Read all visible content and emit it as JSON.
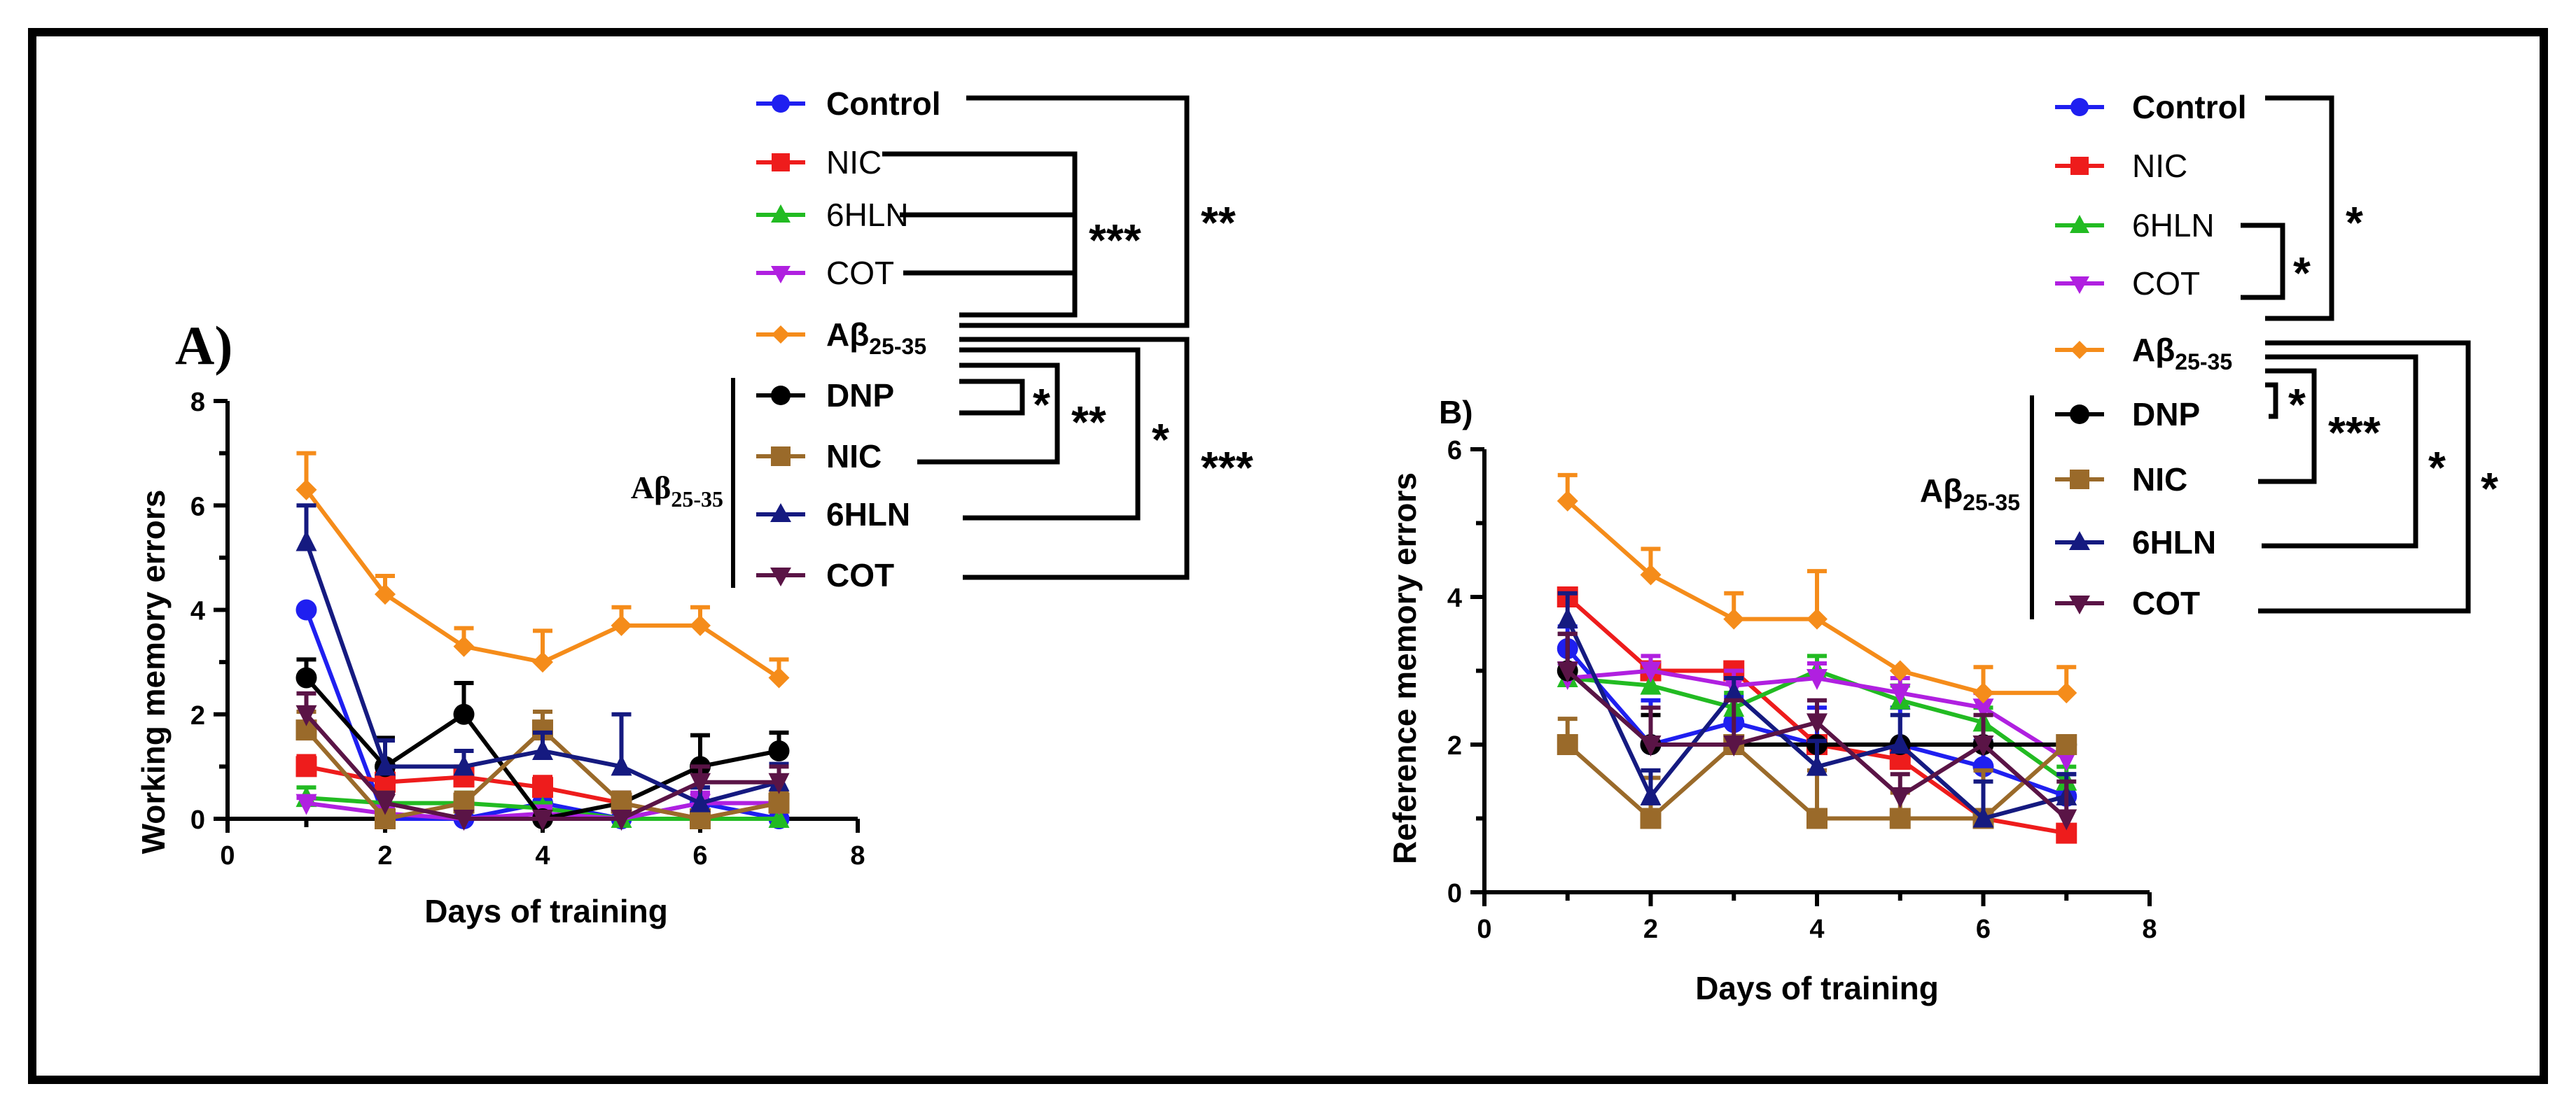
{
  "chart_data": [
    {
      "type": "line",
      "panel_label": "A)",
      "xlabel": "Days of training",
      "ylabel": "Working memory errors",
      "xlim": [
        0,
        8
      ],
      "ylim": [
        0,
        8
      ],
      "x_ticks": [
        "0",
        "2",
        "4",
        "6",
        "8"
      ],
      "y_ticks": [
        "0",
        "2",
        "4",
        "6",
        "8"
      ],
      "x": [
        1,
        2,
        3,
        4,
        5,
        6,
        7
      ],
      "series": [
        {
          "name": "Control",
          "color": "#1f1ff0",
          "marker": "circle",
          "values": [
            4.0,
            0.0,
            0.0,
            0.3,
            0.0,
            0.3,
            0.0
          ],
          "errors": [
            0,
            0,
            0,
            0.3,
            0,
            0.3,
            0
          ]
        },
        {
          "name": "NIC",
          "color": "#ee1c1c",
          "marker": "square",
          "values": [
            1.0,
            0.7,
            0.8,
            0.6,
            0.3,
            0.0,
            0.3
          ],
          "errors": [
            0.2,
            0.2,
            0.2,
            0.2,
            0.2,
            0,
            0.2
          ]
        },
        {
          "name": "6HLN",
          "color": "#22bb22",
          "marker": "triangle",
          "values": [
            0.4,
            0.3,
            0.3,
            0.2,
            0.0,
            0.0,
            0.0
          ],
          "errors": [
            0.2,
            0.2,
            0.2,
            0.1,
            0,
            0,
            0
          ]
        },
        {
          "name": "COT",
          "color": "#b020e0",
          "marker": "triangle-down",
          "values": [
            0.3,
            0.1,
            0.0,
            0.1,
            0.0,
            0.3,
            0.3
          ],
          "errors": [
            0.1,
            0.1,
            0,
            0.1,
            0,
            0.2,
            0.2
          ]
        },
        {
          "name": "Aβ25-35",
          "color": "#f58c1a",
          "marker": "diamond",
          "values": [
            6.3,
            4.3,
            3.3,
            3.0,
            3.7,
            3.7,
            2.7
          ],
          "errors": [
            0.7,
            0.35,
            0.35,
            0.6,
            0.35,
            0.35,
            0.35
          ]
        },
        {
          "name": "DNP",
          "color": "#000000",
          "marker": "circle",
          "values": [
            2.7,
            1.0,
            2.0,
            0.0,
            0.3,
            1.0,
            1.3
          ],
          "errors": [
            0.35,
            0.55,
            0.6,
            0,
            0.2,
            0.6,
            0.35
          ]
        },
        {
          "name": "NIC",
          "color": "#9a6a2a",
          "marker": "square",
          "values": [
            1.7,
            0.0,
            0.3,
            1.7,
            0.3,
            0.0,
            0.3
          ],
          "errors": [
            0.35,
            0,
            0.2,
            0.35,
            0.2,
            0,
            0.2
          ]
        },
        {
          "name": "6HLN",
          "color": "#151a80",
          "marker": "triangle",
          "values": [
            5.3,
            1.0,
            1.0,
            1.3,
            1.0,
            0.3,
            0.7
          ],
          "errors": [
            0.7,
            0.5,
            0.3,
            0.35,
            1.0,
            0.3,
            0.35
          ]
        },
        {
          "name": "COT",
          "color": "#5a1446",
          "marker": "triangle-down",
          "values": [
            2.0,
            0.3,
            0.0,
            0.0,
            0.0,
            0.7,
            0.7
          ],
          "errors": [
            0.4,
            0.2,
            0,
            0,
            0,
            0.3,
            0.3
          ]
        }
      ],
      "legend_group_label": "Aβ25-35",
      "significance": [
        "***",
        "**",
        "*",
        "**",
        "*",
        "***"
      ]
    },
    {
      "type": "line",
      "panel_label": "B)",
      "xlabel": "Days of training",
      "ylabel": "Reference memory errors",
      "xlim": [
        0,
        8
      ],
      "ylim": [
        0,
        6
      ],
      "x_ticks": [
        "0",
        "2",
        "4",
        "6",
        "8"
      ],
      "y_ticks": [
        "0",
        "2",
        "4",
        "6"
      ],
      "x": [
        1,
        2,
        3,
        4,
        5,
        6,
        7
      ],
      "series": [
        {
          "name": "Control",
          "color": "#1f1ff0",
          "marker": "circle",
          "values": [
            3.3,
            2.0,
            2.3,
            2.0,
            2.0,
            1.7,
            1.3
          ],
          "errors": [
            0.3,
            0.6,
            0.35,
            0.5,
            0.5,
            0.35,
            0.3
          ]
        },
        {
          "name": "NIC",
          "color": "#ee1c1c",
          "marker": "square",
          "values": [
            4.0,
            3.0,
            3.0,
            2.0,
            1.8,
            1.0,
            0.8
          ],
          "errors": [
            0,
            0,
            0,
            0,
            0.2,
            0,
            0.1
          ]
        },
        {
          "name": "6HLN",
          "color": "#22bb22",
          "marker": "triangle",
          "values": [
            2.9,
            2.8,
            2.5,
            3.0,
            2.6,
            2.3,
            1.5
          ],
          "errors": [
            0.2,
            0.2,
            0.2,
            0.2,
            0.2,
            0.2,
            0.2
          ]
        },
        {
          "name": "COT",
          "color": "#b020e0",
          "marker": "triangle-down",
          "values": [
            2.9,
            3.0,
            2.8,
            2.9,
            2.7,
            2.5,
            1.8
          ],
          "errors": [
            0.2,
            0.2,
            0.2,
            0.2,
            0.2,
            0.2,
            0.2
          ]
        },
        {
          "name": "Aβ25-35",
          "color": "#f58c1a",
          "marker": "diamond",
          "values": [
            5.3,
            4.3,
            3.7,
            3.7,
            3.0,
            2.7,
            2.7
          ],
          "errors": [
            0.35,
            0.35,
            0.35,
            0.65,
            0,
            0.35,
            0.35
          ]
        },
        {
          "name": "DNP",
          "color": "#000000",
          "marker": "circle",
          "values": [
            3.0,
            2.0,
            2.0,
            2.0,
            2.0,
            2.0,
            2.0
          ],
          "errors": [
            0.5,
            0.4,
            0,
            0,
            0,
            0,
            0
          ]
        },
        {
          "name": "NIC",
          "color": "#9a6a2a",
          "marker": "square",
          "values": [
            2.0,
            1.0,
            2.0,
            1.0,
            1.0,
            1.0,
            2.0
          ],
          "errors": [
            0.35,
            0.55,
            0,
            0.65,
            0.35,
            0.65,
            0
          ]
        },
        {
          "name": "6HLN",
          "color": "#151a80",
          "marker": "triangle",
          "values": [
            3.7,
            1.3,
            2.7,
            1.7,
            2.0,
            1.0,
            1.3
          ],
          "errors": [
            0.35,
            0.35,
            0.2,
            0.35,
            0.4,
            0.5,
            0.3
          ]
        },
        {
          "name": "COT",
          "color": "#5a1446",
          "marker": "triangle-down",
          "values": [
            3.0,
            2.0,
            2.0,
            2.3,
            1.3,
            2.0,
            1.0
          ],
          "errors": [
            0.5,
            0.5,
            0.6,
            0.3,
            0.3,
            0.4,
            0.5
          ]
        }
      ],
      "legend_group_label": "Aβ25-35",
      "significance": [
        "*",
        "*",
        "*",
        "***",
        "*",
        "*"
      ]
    }
  ]
}
